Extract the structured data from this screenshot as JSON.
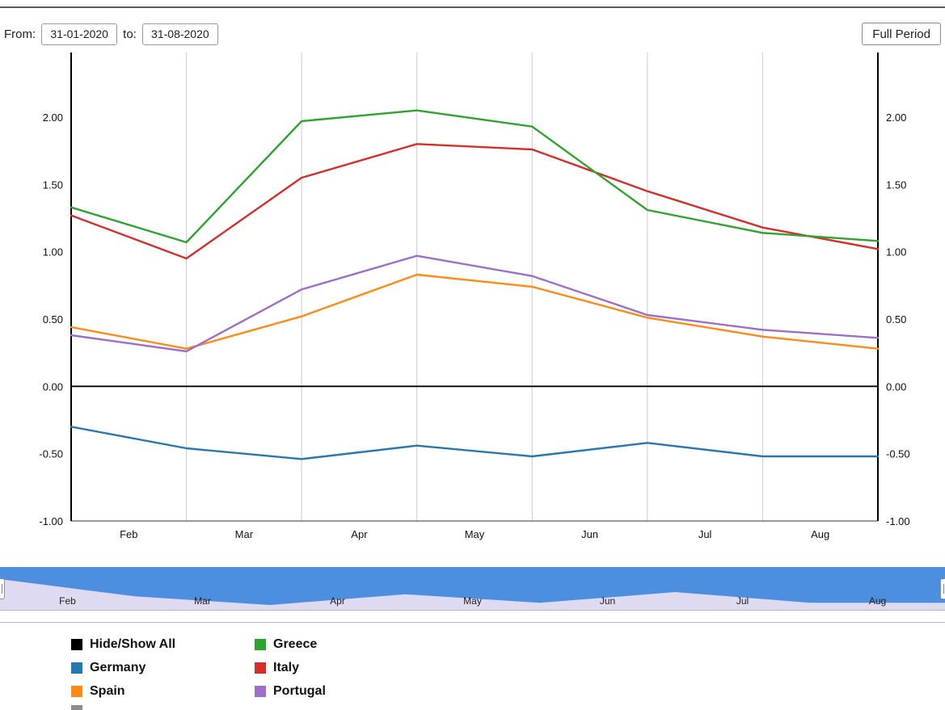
{
  "controls": {
    "from_label": "From:",
    "from_value": "31-01-2020",
    "to_label": "to:",
    "to_value": "31-08-2020",
    "full_period_label": "Full Period"
  },
  "chart_data": {
    "type": "line",
    "title": "",
    "points_per_series": 8,
    "x_month_labels": [
      "Feb",
      "Mar",
      "Apr",
      "May",
      "Jun",
      "Jul",
      "Aug"
    ],
    "y_tick_labels": [
      "2.00",
      "1.50",
      "1.00",
      "0.50",
      "0.00",
      "-0.50",
      "-1.00"
    ],
    "y_tick_values": [
      2.0,
      1.5,
      1.0,
      0.5,
      0.0,
      -0.5,
      -1.0
    ],
    "ylim": [
      -1.0,
      2.48
    ],
    "grid": "vertical-month-boundaries",
    "zero_line": true,
    "series": [
      {
        "name": "Germany",
        "color": "#2878B0",
        "values": [
          -0.3,
          -0.46,
          -0.54,
          -0.44,
          -0.52,
          -0.42,
          -0.52,
          -0.52
        ]
      },
      {
        "name": "Spain",
        "color": "#FF8A15",
        "values": [
          0.44,
          0.28,
          0.52,
          0.83,
          0.74,
          0.51,
          0.37,
          0.28
        ]
      },
      {
        "name": "Portugal",
        "color": "#9C6FCB",
        "values": [
          0.38,
          0.26,
          0.72,
          0.97,
          0.82,
          0.53,
          0.42,
          0.36
        ]
      },
      {
        "name": "Italy",
        "color": "#D62E2A",
        "values": [
          1.27,
          0.95,
          1.55,
          1.8,
          1.76,
          1.45,
          1.18,
          1.02
        ]
      },
      {
        "name": "Greece",
        "color": "#2DA42D",
        "values": [
          1.33,
          1.07,
          1.97,
          2.05,
          1.93,
          1.31,
          1.14,
          1.08
        ]
      }
    ]
  },
  "navigator": {
    "months": [
      "Feb",
      "Mar",
      "Apr",
      "May",
      "Jun",
      "Jul",
      "Aug"
    ],
    "selection_color": "#4C8FE0",
    "track_color": "#DDDAF2",
    "wave_series": "Germany"
  },
  "legend": {
    "columns": 2,
    "items": [
      {
        "label": "Hide/Show All",
        "color": "#000000",
        "name": "hide-show-all"
      },
      {
        "label": "Greece",
        "color": "#2DA42D",
        "name": "greece"
      },
      {
        "label": "Germany",
        "color": "#2878B0",
        "name": "germany"
      },
      {
        "label": "Italy",
        "color": "#D62E2A",
        "name": "italy"
      },
      {
        "label": "Spain",
        "color": "#FF8A15",
        "name": "spain"
      },
      {
        "label": "Portugal",
        "color": "#9C6FCB",
        "name": "portugal"
      }
    ]
  }
}
